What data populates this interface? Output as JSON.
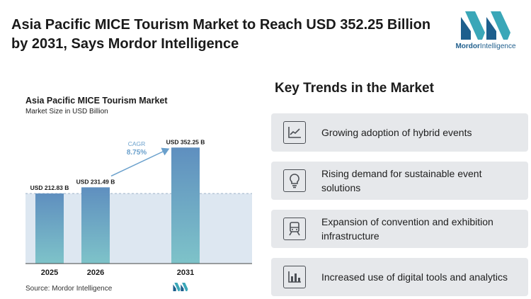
{
  "headline": "Asia Pacific MICE Tourism Market to Reach USD 352.25 Billion by 2031, Says Mordor Intelligence",
  "brand": {
    "name_bold": "Mordor",
    "name_rest": "Intelligence"
  },
  "chart_data": {
    "type": "bar",
    "title": "Asia Pacific MICE Tourism Market",
    "subtitle": "Market Size in USD Billion",
    "categories": [
      "2025",
      "2026",
      "2031"
    ],
    "values": [
      212.83,
      231.49,
      352.25
    ],
    "data_labels": [
      "USD 212.83 B",
      "USD 231.49 B",
      "USD 352.25 B"
    ],
    "cagr_label": "CAGR",
    "cagr_value": "8.75%",
    "ylim": [
      0,
      370
    ],
    "grid": false,
    "colors": {
      "bar_top": "#5f8fbf",
      "bar_bottom": "#7ec3c9",
      "band": "#dde7f1",
      "arrow": "#6aa0cc",
      "cagr": "#6aa0cc"
    }
  },
  "source": "Source:  Mordor Intelligence",
  "trends": {
    "title": "Key Trends in the Market",
    "items": [
      {
        "icon": "line-chart-icon",
        "text": "Growing adoption of hybrid events"
      },
      {
        "icon": "lightbulb-icon",
        "text": "Rising demand for sustainable event solutions"
      },
      {
        "icon": "train-icon",
        "text": "Expansion of convention and exhibition infrastructure"
      },
      {
        "icon": "bar-chart-icon",
        "text": "Increased use of digital tools and analytics"
      }
    ]
  }
}
